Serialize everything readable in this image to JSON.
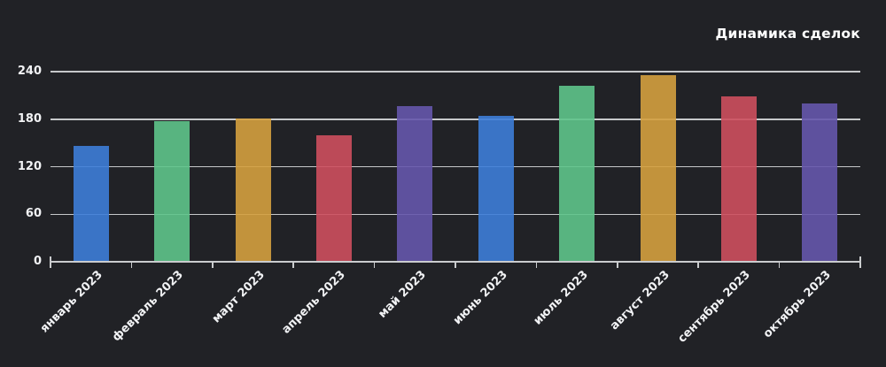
{
  "title": "Динамика сделок",
  "chart_data": {
    "type": "bar",
    "title": "Динамика сделок",
    "categories": [
      "январь 2023",
      "февраль 2023",
      "март 2023",
      "апрель 2023",
      "май 2023",
      "июнь 2023",
      "июль 2023",
      "август 2023",
      "сентябрь 2023",
      "октябрь 2023"
    ],
    "values": [
      146,
      177,
      181,
      160,
      196,
      184,
      222,
      235,
      209,
      200
    ],
    "bar_colors": [
      "#3d7dd8",
      "#5ec48b",
      "#d4a03f",
      "#cd4f5e",
      "#6557ac",
      "#3d7dd8",
      "#5ec48b",
      "#d4a03f",
      "#cd4f5e",
      "#6557ac"
    ],
    "xlabel": "",
    "ylabel": "",
    "ylim": [
      0,
      240
    ],
    "yticks": [
      0,
      60,
      120,
      180,
      240
    ],
    "ytick_labels": [
      "0",
      "60",
      "120",
      "180",
      "240"
    ],
    "grid": true,
    "legend": false,
    "legend_position": "none",
    "background_color": "#212226",
    "grid_color": "#c6c8ca",
    "axis_color": "#caccce",
    "text_color": "#f2f3f5",
    "title_color": "#ffffff"
  }
}
